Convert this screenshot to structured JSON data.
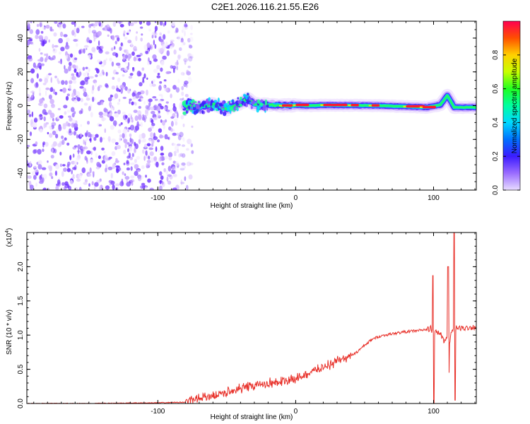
{
  "title": "C2E1.2026.116.21.55.E26",
  "chart_data": [
    {
      "type": "heatmap",
      "name": "spectrogram",
      "xlabel": "Height of straight line (km)",
      "ylabel": "Frequency (Hz)",
      "xlim": [
        -195,
        131
      ],
      "ylim": [
        -50,
        50
      ],
      "xticks": [
        -100,
        0,
        100
      ],
      "xtick_labels": [
        "-100",
        "0",
        "100"
      ],
      "yticks": [
        -40,
        -20,
        0,
        20,
        40
      ],
      "ytick_labels": [
        "-40",
        "-20",
        "0",
        "20",
        "40"
      ],
      "noise_region_x": [
        -195,
        -80
      ],
      "signal_band": [
        {
          "x": -80,
          "f": 0.0,
          "amp": 0.3
        },
        {
          "x": -70,
          "f": -1.0,
          "amp": 0.35
        },
        {
          "x": -60,
          "f": 1.0,
          "amp": 0.35
        },
        {
          "x": -50,
          "f": -2.0,
          "amp": 0.4
        },
        {
          "x": -40,
          "f": 1.5,
          "amp": 0.45
        },
        {
          "x": -35,
          "f": 4.0,
          "amp": 0.5
        },
        {
          "x": -30,
          "f": 1.0,
          "amp": 0.55
        },
        {
          "x": -20,
          "f": 0.5,
          "amp": 0.65
        },
        {
          "x": -10,
          "f": 0.0,
          "amp": 0.75
        },
        {
          "x": 0,
          "f": 0.3,
          "amp": 0.85
        },
        {
          "x": 10,
          "f": 0.0,
          "amp": 0.8
        },
        {
          "x": 20,
          "f": 0.3,
          "amp": 0.9
        },
        {
          "x": 40,
          "f": 0.2,
          "amp": 0.7
        },
        {
          "x": 60,
          "f": 0.0,
          "amp": 0.65
        },
        {
          "x": 80,
          "f": -0.5,
          "amp": 0.8
        },
        {
          "x": 95,
          "f": -1.0,
          "amp": 0.95
        },
        {
          "x": 105,
          "f": 0.5,
          "amp": 0.5
        },
        {
          "x": 110,
          "f": 6.0,
          "amp": 0.4
        },
        {
          "x": 115,
          "f": -1.0,
          "amp": 0.5
        },
        {
          "x": 131,
          "f": -1.0,
          "amp": 0.4
        }
      ],
      "colorbar": {
        "label": "Normalized spectral amplitude",
        "range": [
          0.0,
          1.0
        ],
        "ticks": [
          0.0,
          0.2,
          0.4,
          0.6,
          0.8
        ],
        "tick_labels": [
          "0.0",
          "0.2",
          "0.4",
          "0.6",
          "0.8"
        ]
      }
    },
    {
      "type": "line",
      "name": "snr",
      "xlabel": "Height of straight line (km)",
      "ylabel": "SNR (10 * v/v)",
      "multiplier_label": "(x10",
      "multiplier_exponent": "4",
      "xlim": [
        -195,
        131
      ],
      "ylim": [
        0,
        2.5
      ],
      "xticks": [
        -100,
        0,
        100
      ],
      "xtick_labels": [
        "-100",
        "0",
        "100"
      ],
      "yticks": [
        0.0,
        0.5,
        1.0,
        1.5,
        2.0
      ],
      "ytick_labels": [
        "0.0",
        "0.5",
        "1.0",
        "1.5",
        "2.0"
      ],
      "color": "#e8312a",
      "series": [
        {
          "name": "SNR",
          "x": [
            -195,
            -150,
            -100,
            -80,
            -75,
            -70,
            -60,
            -50,
            -40,
            -30,
            -20,
            -10,
            0,
            10,
            20,
            30,
            40,
            45,
            50,
            55,
            60,
            70,
            80,
            90,
            95,
            98,
            100,
            102,
            105,
            108,
            110,
            112,
            113,
            115,
            120,
            131
          ],
          "y": [
            0.0,
            0.0,
            0.01,
            0.02,
            0.04,
            0.08,
            0.12,
            0.16,
            0.22,
            0.26,
            0.3,
            0.32,
            0.36,
            0.45,
            0.53,
            0.62,
            0.7,
            0.76,
            0.85,
            0.93,
            0.98,
            1.02,
            1.05,
            1.07,
            1.08,
            1.1,
            1.0,
            1.05,
            1.02,
            0.9,
            1.0,
            0.9,
            1.05,
            1.1,
            1.1,
            1.12
          ]
        }
      ],
      "spikes": [
        {
          "x": 99.5,
          "peak": 1.87,
          "dip": 0.0
        },
        {
          "x": 110.5,
          "peak": 2.0,
          "dip": 0.45
        },
        {
          "x": 115,
          "peak": 2.5,
          "dip": 0.05
        }
      ]
    }
  ]
}
